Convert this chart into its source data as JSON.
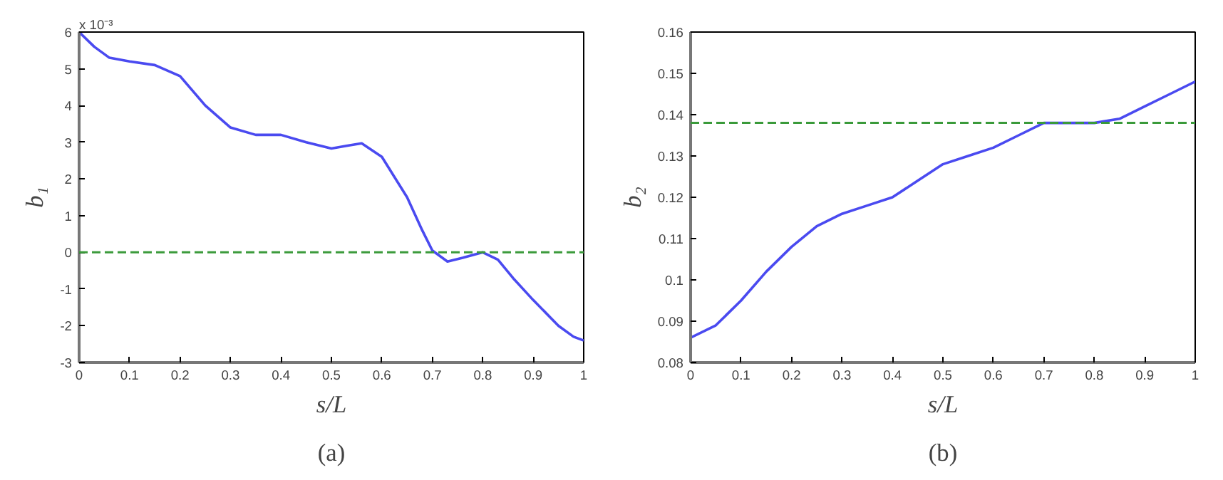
{
  "chart_data": [
    {
      "type": "line",
      "xlabel": "s/L",
      "ylabel": "b₁",
      "annotations": [
        "x 10⁻³",
        "(a)"
      ],
      "x": [
        0,
        0.03,
        0.06,
        0.1,
        0.15,
        0.2,
        0.25,
        0.3,
        0.35,
        0.4,
        0.45,
        0.5,
        0.53,
        0.56,
        0.6,
        0.65,
        0.68,
        0.7,
        0.73,
        0.76,
        0.8,
        0.83,
        0.86,
        0.9,
        0.95,
        0.98,
        1.0
      ],
      "series": [
        {
          "color": "#4a4af0",
          "values": [
            6.0,
            5.6,
            5.3,
            5.2,
            5.1,
            4.8,
            4.0,
            3.4,
            3.2,
            3.2,
            3.0,
            2.83,
            2.9,
            2.97,
            2.6,
            1.5,
            0.6,
            0.05,
            -0.25,
            -0.15,
            0.0,
            -0.2,
            -0.7,
            -1.3,
            -2.0,
            -2.3,
            -2.4
          ]
        }
      ],
      "xlim": [
        0,
        1
      ],
      "ylim": [
        -3,
        6
      ],
      "xticks": [
        0,
        0.1,
        0.2,
        0.3,
        0.4,
        0.5,
        0.6,
        0.7,
        0.8,
        0.9,
        1
      ],
      "yticks": [
        -3,
        -2,
        -1,
        0,
        1,
        2,
        3,
        4,
        5,
        6
      ],
      "ref_lines": [
        {
          "axis": "y",
          "value": 0,
          "color": "#3a9a3a",
          "line_style": "dashed"
        }
      ]
    },
    {
      "type": "line",
      "xlabel": "s/L",
      "ylabel": "b₂",
      "annotations": [
        "(b)"
      ],
      "x": [
        0,
        0.05,
        0.1,
        0.15,
        0.2,
        0.25,
        0.3,
        0.35,
        0.4,
        0.45,
        0.5,
        0.55,
        0.6,
        0.65,
        0.7,
        0.75,
        0.8,
        0.85,
        0.9,
        0.95,
        1.0
      ],
      "series": [
        {
          "color": "#4a4af0",
          "values": [
            0.086,
            0.089,
            0.095,
            0.102,
            0.108,
            0.113,
            0.116,
            0.118,
            0.12,
            0.124,
            0.128,
            0.13,
            0.132,
            0.135,
            0.138,
            0.138,
            0.138,
            0.139,
            0.142,
            0.145,
            0.148
          ]
        }
      ],
      "xlim": [
        0,
        1
      ],
      "ylim": [
        0.08,
        0.16
      ],
      "xticks": [
        0,
        0.1,
        0.2,
        0.3,
        0.4,
        0.5,
        0.6,
        0.7,
        0.8,
        0.9,
        1
      ],
      "yticks": [
        0.08,
        0.09,
        0.1,
        0.11,
        0.12,
        0.13,
        0.14,
        0.15,
        0.16
      ],
      "ref_lines": [
        {
          "axis": "y",
          "value": 0.138,
          "color": "#3a9a3a",
          "line_style": "dashed"
        }
      ]
    }
  ]
}
